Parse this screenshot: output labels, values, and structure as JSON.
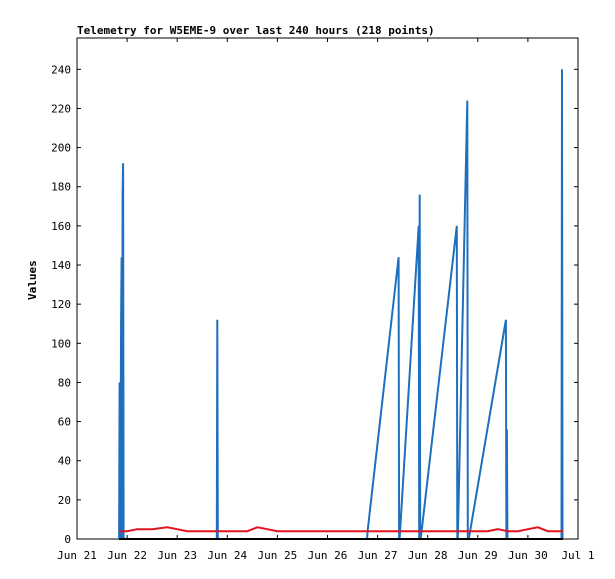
{
  "chart_data": {
    "type": "line",
    "title": "Telemetry for W5EME-9 over last 240 hours (218 points)",
    "xlabel": "",
    "ylabel": "Values",
    "x_ticks": [
      "Jun 21",
      "Jun 22",
      "Jun 23",
      "Jun 24",
      "Jun 25",
      "Jun 26",
      "Jun 27",
      "Jun 28",
      "Jun 29",
      "Jun 30",
      "Jul 1"
    ],
    "y_ticks": [
      0,
      20,
      40,
      60,
      80,
      100,
      120,
      140,
      160,
      180,
      200,
      220,
      240
    ],
    "xlim_days": [
      0,
      10
    ],
    "ylim": [
      0,
      256
    ],
    "grid": false,
    "legend": "none",
    "series": [
      {
        "color": "#1f6fbf",
        "x_days": [
          0.84,
          0.85,
          0.86,
          0.87,
          0.88,
          0.89,
          0.9,
          0.91,
          0.92,
          0.93,
          0.94,
          0.95,
          0.96,
          0.97,
          0.98,
          2.79,
          2.8,
          2.81,
          5.79,
          5.8,
          6.42,
          6.43,
          6.44,
          6.82,
          6.83,
          6.84,
          6.85,
          6.86,
          7.58,
          7.59,
          7.6,
          7.79,
          7.8,
          7.81,
          7.82,
          8.56,
          8.57,
          8.58,
          8.59,
          8.6,
          8.61,
          8.62,
          8.63,
          8.64,
          9.67,
          9.68,
          9.69,
          9.7
        ],
        "values": [
          0,
          80,
          0,
          48,
          112,
          144,
          0,
          176,
          192,
          0,
          0,
          0,
          0,
          0,
          0,
          0,
          112,
          0,
          0,
          4,
          144,
          0,
          0,
          160,
          0,
          176,
          0,
          0,
          160,
          0,
          0,
          224,
          0,
          0,
          0,
          112,
          0,
          56,
          0,
          0,
          0,
          0,
          0,
          0,
          0,
          240,
          0,
          0
        ]
      },
      {
        "color": "#e0141e",
        "x_days": [
          0.84,
          1.0,
          1.2,
          1.5,
          1.8,
          2.0,
          2.2,
          2.4,
          2.6,
          3.0,
          3.4,
          3.6,
          3.8,
          4.0,
          4.4,
          4.8,
          5.2,
          5.6,
          6.0,
          6.4,
          6.8,
          7.2,
          7.6,
          8.0,
          8.2,
          8.4,
          8.6,
          8.8,
          9.0,
          9.2,
          9.4,
          9.6,
          9.7
        ],
        "values": [
          4,
          4,
          5,
          5,
          6,
          5,
          4,
          4,
          4,
          4,
          4,
          6,
          5,
          4,
          4,
          4,
          4,
          4,
          4,
          4,
          4,
          4,
          4,
          4,
          4,
          5,
          4,
          4,
          5,
          6,
          4,
          4,
          4
        ]
      },
      {
        "color": "#000000",
        "x_days": [
          0.84,
          9.7
        ],
        "values": [
          0,
          0
        ]
      }
    ]
  }
}
